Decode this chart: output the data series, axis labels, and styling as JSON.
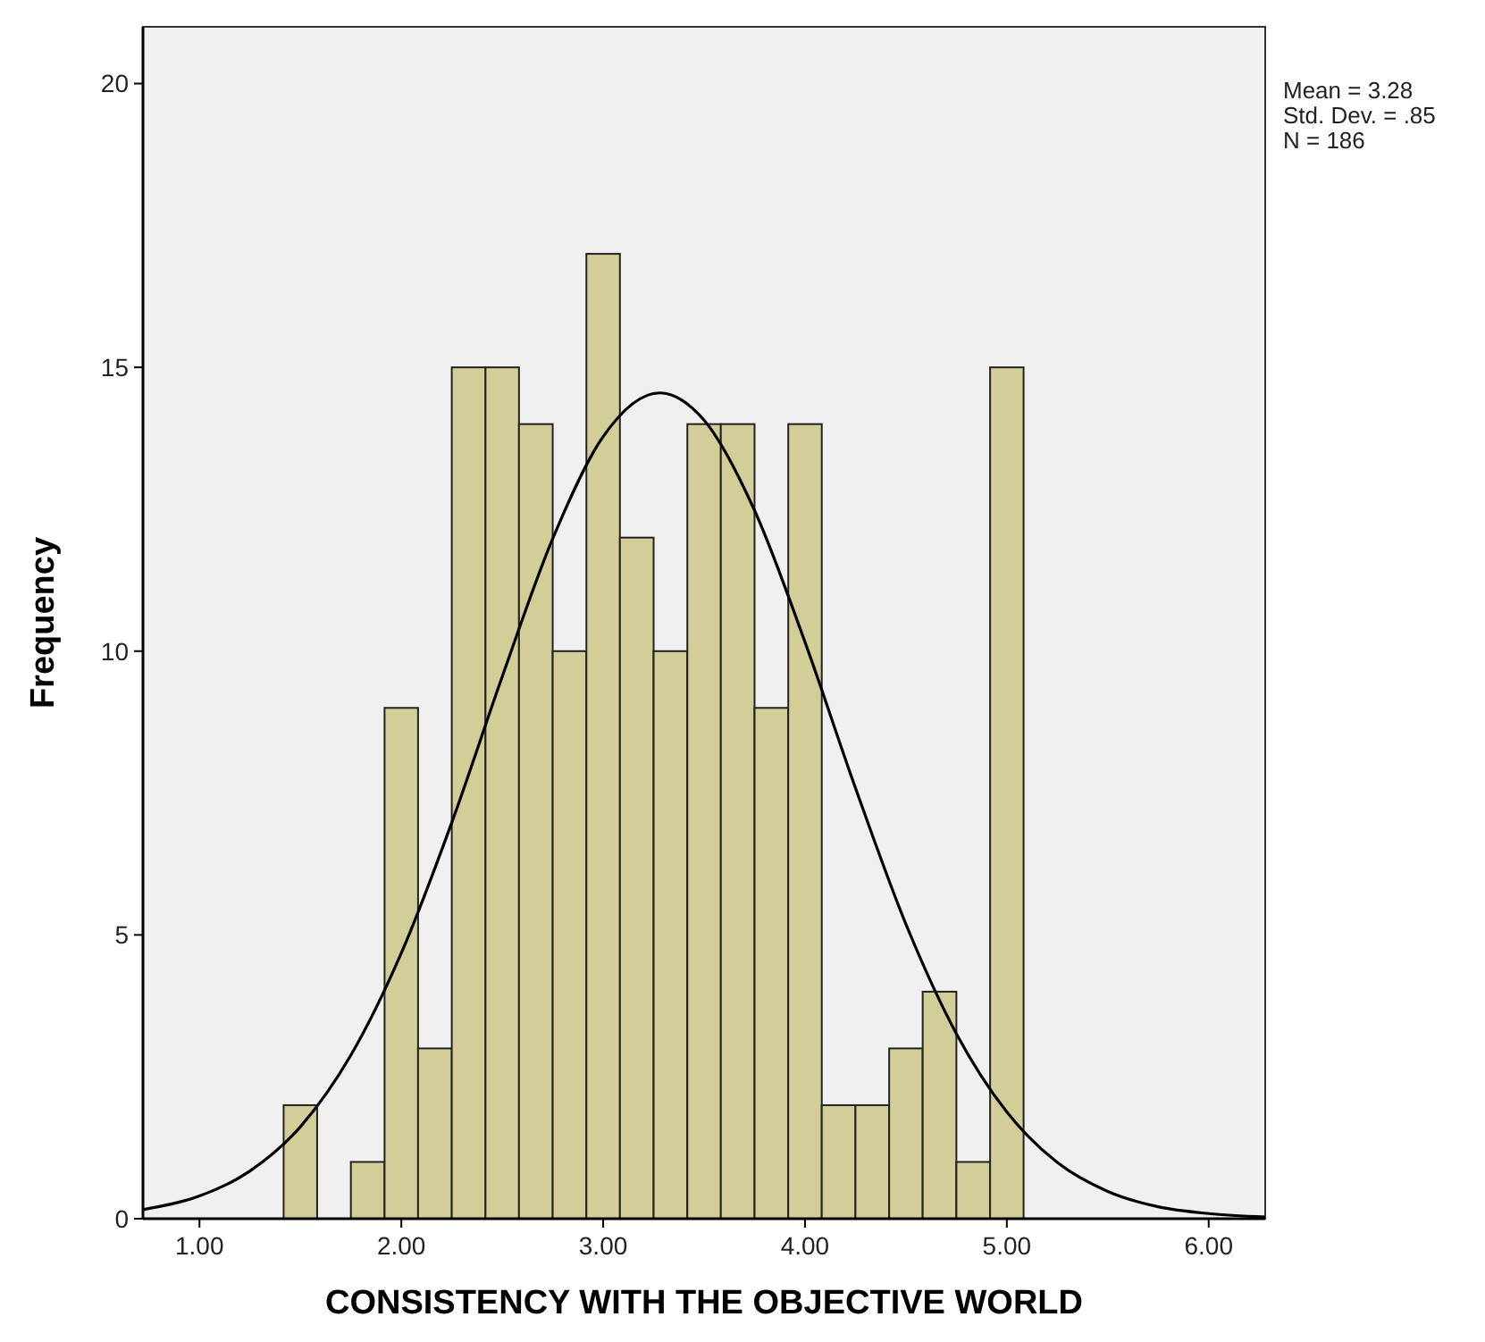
{
  "chart_data": {
    "type": "histogram",
    "xlabel": "CONSISTENCY WITH THE OBJECTIVE WORLD",
    "ylabel": "Frequency",
    "annotations": [
      "Mean = 3.28",
      "Std. Dev. = .85",
      "N = 186"
    ],
    "bins": [
      1.417,
      1.583,
      1.75,
      1.917,
      2.083,
      2.25,
      2.417,
      2.583,
      2.75,
      2.917,
      3.083,
      3.25,
      3.417,
      3.583,
      3.75,
      3.917,
      4.083,
      4.25,
      4.417,
      4.583,
      4.75,
      4.917,
      5.083
    ],
    "values": [
      2,
      0,
      1,
      9,
      3,
      15,
      15,
      14,
      10,
      17,
      12,
      10,
      14,
      14,
      9,
      14,
      2,
      2,
      3,
      4,
      1,
      15
    ],
    "color": "#d3cd98",
    "series": [
      {
        "type": "line",
        "color": "#000000",
        "x": [
          0.72,
          1,
          1.25,
          1.5,
          1.75,
          2,
          2.25,
          2.5,
          2.75,
          3,
          3.28,
          3.5,
          3.75,
          4,
          4.25,
          4.5,
          4.75,
          5,
          5.25,
          5.5,
          5.75,
          6,
          6.28
        ],
        "values": [
          0.16,
          0.4,
          0.84,
          1.62,
          2.88,
          4.68,
          6.98,
          9.55,
          11.98,
          13.78,
          14.55,
          14.07,
          12.48,
          10.16,
          7.59,
          5.19,
          3.26,
          1.88,
          0.99,
          0.48,
          0.21,
          0.09,
          0.03
        ]
      }
    ],
    "xlim": [
      0.72,
      6.28
    ],
    "ylim": [
      0,
      21
    ],
    "xticks": [
      {
        "value": 1,
        "label": "1.00"
      },
      {
        "value": 2,
        "label": "2.00"
      },
      {
        "value": 3,
        "label": "3.00"
      },
      {
        "value": 4,
        "label": "4.00"
      },
      {
        "value": 5,
        "label": "5.00"
      },
      {
        "value": 6,
        "label": "6.00"
      }
    ],
    "yticks": [
      0,
      5,
      10,
      15,
      20
    ],
    "grid": false,
    "marker": "none",
    "line_style": "solid"
  }
}
